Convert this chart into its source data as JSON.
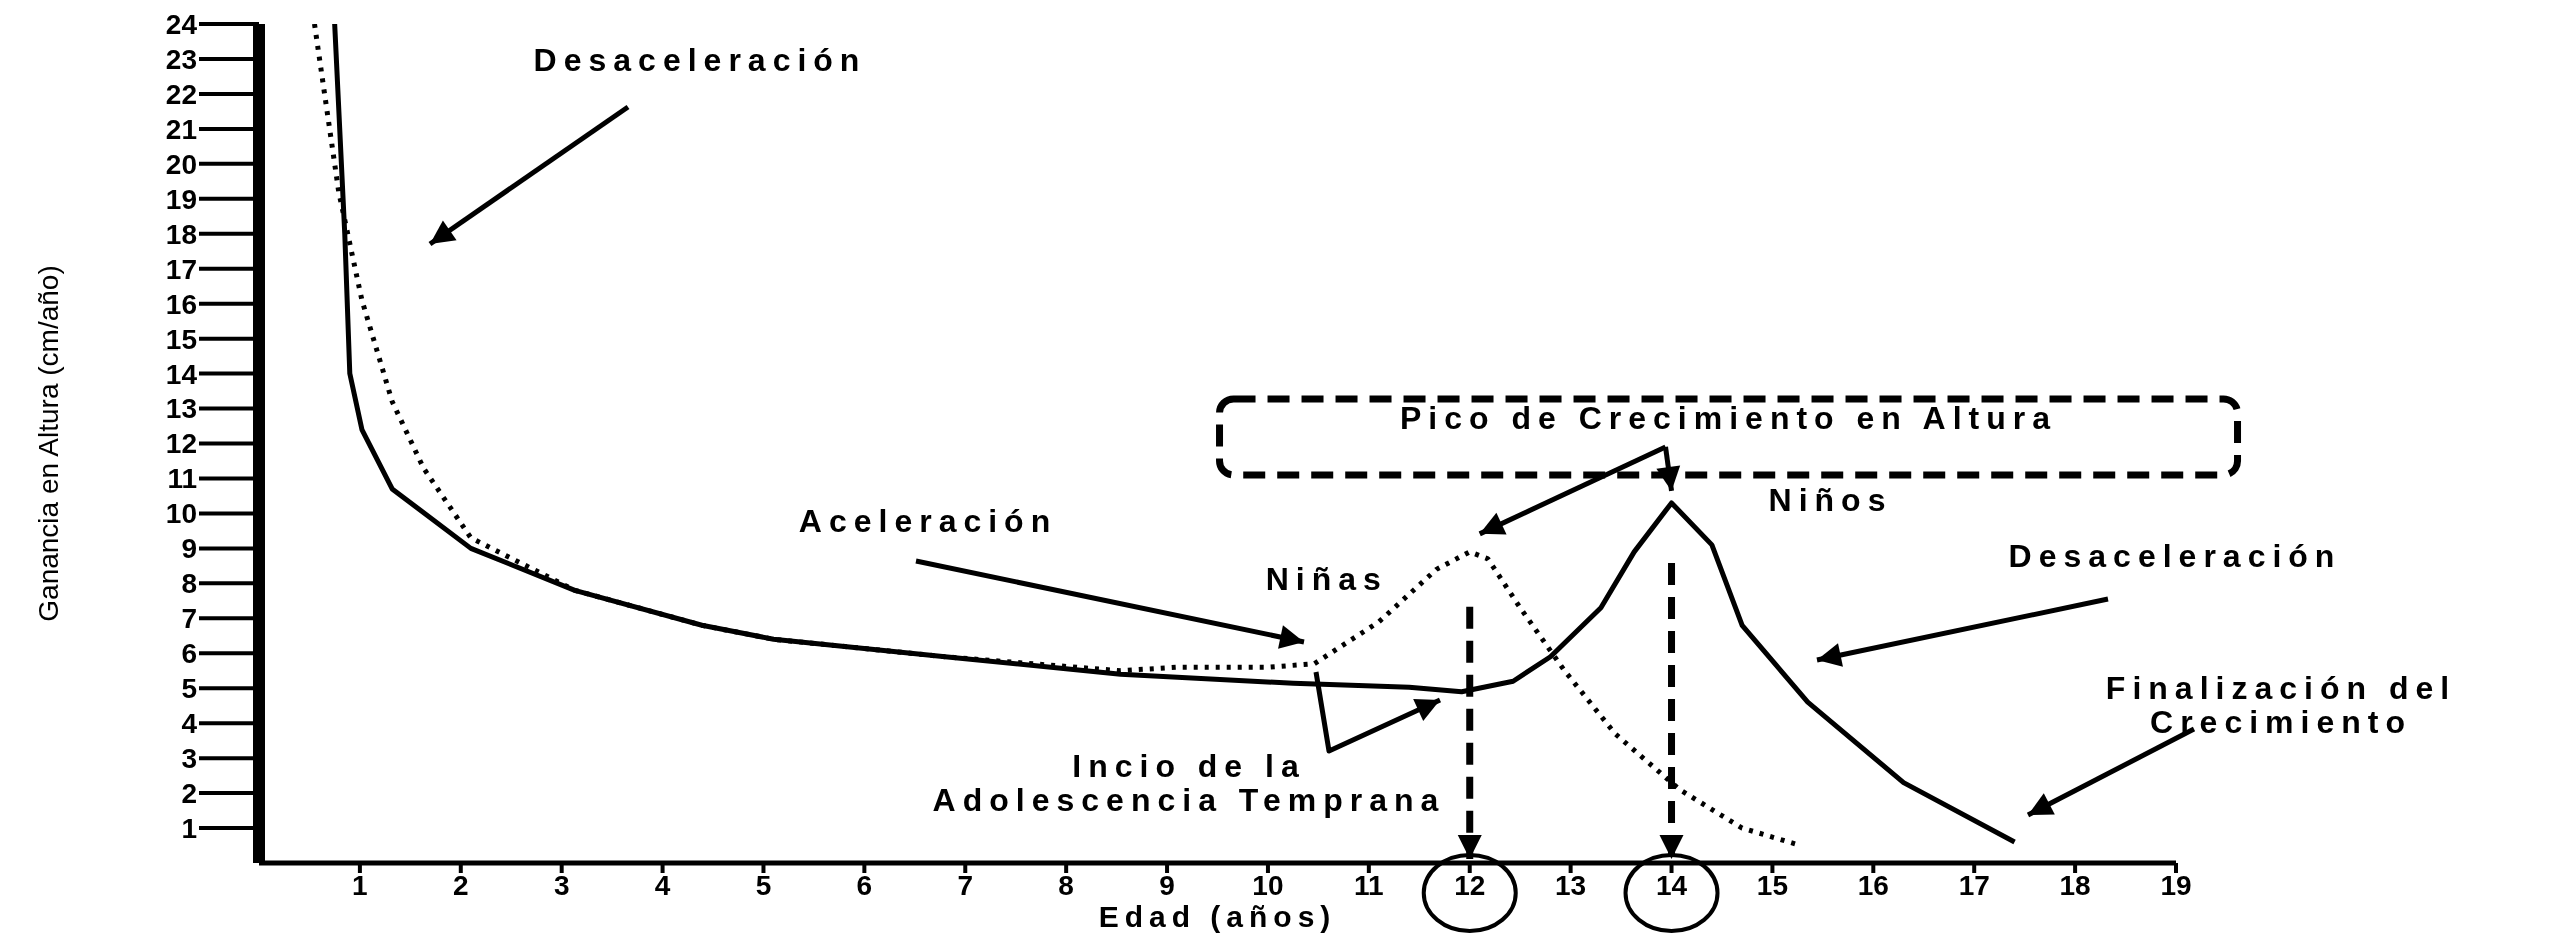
{
  "chart_data": {
    "type": "line",
    "xlabel": "Edad (años)",
    "ylabel": "Ganancia en Altura (cm/año)",
    "xlim": [
      0,
      19
    ],
    "xticks": [
      1,
      2,
      3,
      4,
      5,
      6,
      7,
      8,
      9,
      10,
      11,
      12,
      13,
      14,
      15,
      16,
      17,
      18,
      19
    ],
    "ylim": [
      0,
      24
    ],
    "yticks": [
      1,
      2,
      3,
      4,
      5,
      6,
      7,
      8,
      9,
      10,
      11,
      12,
      13,
      14,
      15,
      16,
      17,
      18,
      19,
      20,
      21,
      22,
      23,
      24
    ],
    "series": [
      {
        "name": "Niñas",
        "color": "#000000",
        "line_style": "dotted",
        "x": [
          0.55,
          0.79,
          1.02,
          1.32,
          1.63,
          2.1,
          3.13,
          4.39,
          5.1,
          6.8,
          8.54,
          9.1,
          10.0,
          10.46,
          11.1,
          11.67,
          12,
          12.18,
          12.5,
          12.94,
          13.44,
          14.08,
          14.7,
          15.28
        ],
        "values": [
          24,
          19.2,
          16.1,
          13.2,
          11.3,
          9.3,
          7.8,
          6.8,
          6.4,
          5.9,
          5.5,
          5.6,
          5.6,
          5.7,
          6.9,
          8.4,
          8.9,
          8.7,
          7.3,
          5.5,
          3.7,
          2.1,
          1.0,
          0.5
        ]
      },
      {
        "name": "Niños",
        "color": "#000000",
        "line_style": "solid",
        "x": [
          0.75,
          0.85,
          0.9,
          1.02,
          1.32,
          2.1,
          3.13,
          4.39,
          5.1,
          6.8,
          8.54,
          10.25,
          11.4,
          11.92,
          12.43,
          12.8,
          13.3,
          13.63,
          14,
          14.4,
          14.7,
          15.35,
          16.3,
          17.4
        ],
        "values": [
          24,
          18,
          14,
          12.4,
          10.7,
          9.0,
          7.8,
          6.8,
          6.4,
          5.9,
          5.4,
          5.14,
          5.03,
          4.9,
          5.2,
          5.9,
          7.3,
          8.9,
          10.3,
          9.1,
          6.8,
          4.6,
          2.3,
          0.6
        ]
      }
    ],
    "annotations": [
      "Desaceleración",
      "Aceleración",
      "Pico de Crecimiento en Altura",
      "Desaceleración",
      "Finalización del Crecimiento",
      "Incio de la Adolescencia Temprana"
    ]
  }
}
